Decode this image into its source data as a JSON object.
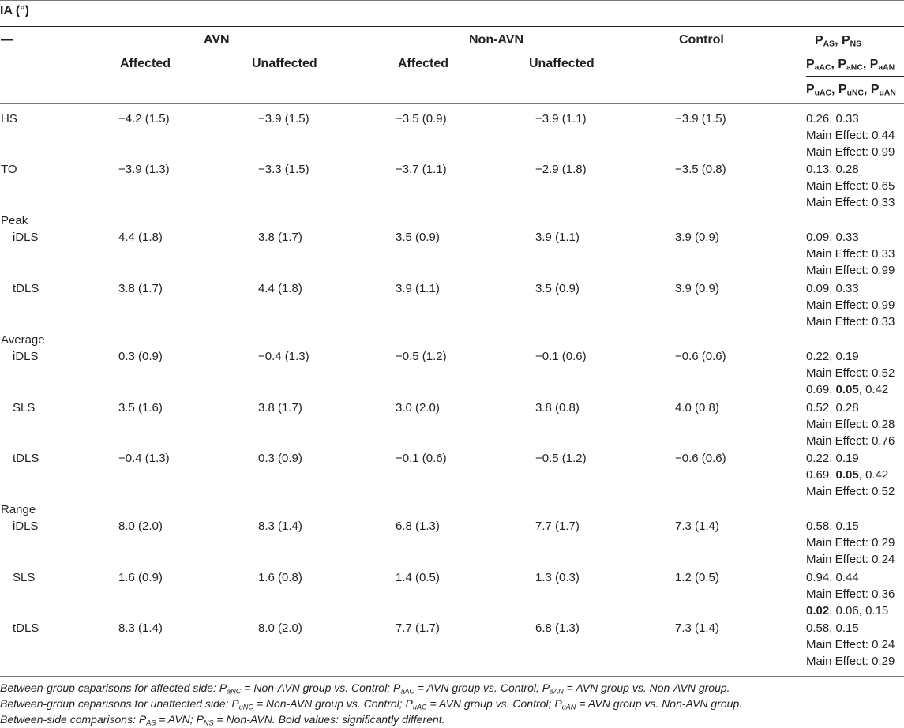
{
  "title": {
    "main": "IA",
    "unit": "(°)"
  },
  "header": {
    "dash": "—",
    "group_avn": "AVN",
    "group_non_avn": "Non-AVN",
    "group_control": "Control",
    "affected": "Affected",
    "unaffected": "Unaffected",
    "p_row1": [
      {
        "t": "P"
      },
      {
        "t": "AS",
        "s": true
      },
      {
        "t": ", P"
      },
      {
        "t": "NS",
        "s": true
      }
    ],
    "p_row2": [
      {
        "t": "P"
      },
      {
        "t": "aAC",
        "s": true
      },
      {
        "t": ", P"
      },
      {
        "t": "aNC",
        "s": true
      },
      {
        "t": ", P"
      },
      {
        "t": "aAN",
        "s": true
      }
    ],
    "p_row3": [
      {
        "t": "P"
      },
      {
        "t": "uAC",
        "s": true
      },
      {
        "t": ", P"
      },
      {
        "t": "uNC",
        "s": true
      },
      {
        "t": ", P"
      },
      {
        "t": "uAN",
        "s": true
      }
    ]
  },
  "rows": [
    {
      "label": "HS",
      "indent": false,
      "avn_a": "−4.2 (1.5)",
      "avn_u": "−3.9 (1.5)",
      "non_a": "−3.5 (0.9)",
      "non_u": "−3.9 (1.1)",
      "ctrl": "−3.9 (1.5)",
      "p": [
        [
          {
            "t": "0.26, 0.33"
          }
        ],
        [
          {
            "t": "Main Effect: 0.44"
          }
        ],
        [
          {
            "t": "Main Effect: 0.99"
          }
        ]
      ]
    },
    {
      "label": "TO",
      "indent": false,
      "avn_a": "−3.9 (1.3)",
      "avn_u": "−3.3 (1.5)",
      "non_a": "−3.7 (1.1)",
      "non_u": "−2.9 (1.8)",
      "ctrl": "−3.5 (0.8)",
      "p": [
        [
          {
            "t": "0.13, 0.28"
          }
        ],
        [
          {
            "t": "Main Effect: 0.65"
          }
        ],
        [
          {
            "t": "Main Effect: 0.33"
          }
        ]
      ]
    },
    {
      "label": "Peak",
      "indent": false,
      "avn_a": "",
      "avn_u": "",
      "non_a": "",
      "non_u": "",
      "ctrl": "",
      "p": []
    },
    {
      "label": "iDLS",
      "indent": true,
      "avn_a": "4.4 (1.8)",
      "avn_u": "3.8 (1.7)",
      "non_a": "3.5 (0.9)",
      "non_u": "3.9 (1.1)",
      "ctrl": "3.9 (0.9)",
      "p": [
        [
          {
            "t": "0.09, 0.33"
          }
        ],
        [
          {
            "t": "Main Effect: 0.33"
          }
        ],
        [
          {
            "t": "Main Effect: 0.99"
          }
        ]
      ]
    },
    {
      "label": "tDLS",
      "indent": true,
      "avn_a": "3.8 (1.7)",
      "avn_u": "4.4 (1.8)",
      "non_a": "3.9 (1.1)",
      "non_u": "3.5 (0.9)",
      "ctrl": "3.9 (0.9)",
      "p": [
        [
          {
            "t": "0.09, 0.33"
          }
        ],
        [
          {
            "t": "Main Effect: 0.99"
          }
        ],
        [
          {
            "t": "Main Effect: 0.33"
          }
        ]
      ]
    },
    {
      "label": "Average",
      "indent": false,
      "avn_a": "",
      "avn_u": "",
      "non_a": "",
      "non_u": "",
      "ctrl": "",
      "p": []
    },
    {
      "label": "iDLS",
      "indent": true,
      "avn_a": "0.3 (0.9)",
      "avn_u": "−0.4 (1.3)",
      "non_a": "−0.5 (1.2)",
      "non_u": "−0.1 (0.6)",
      "ctrl": "−0.6 (0.6)",
      "p": [
        [
          {
            "t": "0.22, 0.19"
          }
        ],
        [
          {
            "t": "Main Effect: 0.52"
          }
        ],
        [
          {
            "t": "0.69, "
          },
          {
            "t": "0.05",
            "b": true
          },
          {
            "t": ", 0.42"
          }
        ]
      ]
    },
    {
      "label": "SLS",
      "indent": true,
      "avn_a": "3.5 (1.6)",
      "avn_u": "3.8 (1.7)",
      "non_a": "3.0 (2.0)",
      "non_u": "3.8 (0.8)",
      "ctrl": "4.0 (0.8)",
      "p": [
        [
          {
            "t": "0.52, 0.28"
          }
        ],
        [
          {
            "t": "Main Effect: 0.28"
          }
        ],
        [
          {
            "t": "Main Effect: 0.76"
          }
        ]
      ]
    },
    {
      "label": "tDLS",
      "indent": true,
      "avn_a": "−0.4 (1.3)",
      "avn_u": "0.3 (0.9)",
      "non_a": "−0.1 (0.6)",
      "non_u": "−0.5 (1.2)",
      "ctrl": "−0.6 (0.6)",
      "p": [
        [
          {
            "t": "0.22, 0.19"
          }
        ],
        [
          {
            "t": "0.69, "
          },
          {
            "t": "0.05",
            "b": true
          },
          {
            "t": ", 0.42"
          }
        ],
        [
          {
            "t": "Main Effect: 0.52"
          }
        ]
      ]
    },
    {
      "label": "Range",
      "indent": false,
      "avn_a": "",
      "avn_u": "",
      "non_a": "",
      "non_u": "",
      "ctrl": "",
      "p": []
    },
    {
      "label": "iDLS",
      "indent": true,
      "avn_a": "8.0 (2.0)",
      "avn_u": "8.3 (1.4)",
      "non_a": "6.8 (1.3)",
      "non_u": "7.7 (1.7)",
      "ctrl": "7.3 (1.4)",
      "p": [
        [
          {
            "t": "0.58, 0.15"
          }
        ],
        [
          {
            "t": "Main Effect: 0.29"
          }
        ],
        [
          {
            "t": "Main Effect: 0.24"
          }
        ]
      ]
    },
    {
      "label": "SLS",
      "indent": true,
      "avn_a": "1.6 (0.9)",
      "avn_u": "1.6 (0.8)",
      "non_a": "1.4 (0.5)",
      "non_u": "1.3 (0.3)",
      "ctrl": "1.2 (0.5)",
      "p": [
        [
          {
            "t": "0.94, 0.44"
          }
        ],
        [
          {
            "t": "Main Effect: 0.36"
          }
        ],
        [
          {
            "t": "0.02",
            "b": true
          },
          {
            "t": ", 0.06, 0.15"
          }
        ]
      ]
    },
    {
      "label": "tDLS",
      "indent": true,
      "avn_a": "8.3 (1.4)",
      "avn_u": "8.0 (2.0)",
      "non_a": "7.7 (1.7)",
      "non_u": "6.8 (1.3)",
      "ctrl": "7.3 (1.4)",
      "p": [
        [
          {
            "t": "0.58, 0.15"
          }
        ],
        [
          {
            "t": "Main Effect: 0.24"
          }
        ],
        [
          {
            "t": "Main Effect: 0.29"
          }
        ]
      ]
    }
  ],
  "footnotes": [
    [
      {
        "t": "Between-group caparisons for affected side: P"
      },
      {
        "t": "aNC",
        "s": true
      },
      {
        "t": " = Non-AVN group vs. Control; P"
      },
      {
        "t": "aAC",
        "s": true
      },
      {
        "t": " = AVN group vs. Control; P"
      },
      {
        "t": "aAN",
        "s": true
      },
      {
        "t": " = AVN group vs. Non-AVN group."
      }
    ],
    [
      {
        "t": "Between-group caparisons for unaffected side: P"
      },
      {
        "t": "uNC",
        "s": true
      },
      {
        "t": " = Non-AVN group vs. Control; P"
      },
      {
        "t": "uAC",
        "s": true
      },
      {
        "t": " = AVN group vs. Control; P"
      },
      {
        "t": "uAN",
        "s": true
      },
      {
        "t": " = AVN group vs. Non-AVN group."
      }
    ],
    [
      {
        "t": "Between-side comparisons: P"
      },
      {
        "t": "AS",
        "s": true
      },
      {
        "t": " = AVN; P"
      },
      {
        "t": "NS",
        "s": true
      },
      {
        "t": " = Non-AVN. Bold values: significantly different."
      }
    ]
  ]
}
